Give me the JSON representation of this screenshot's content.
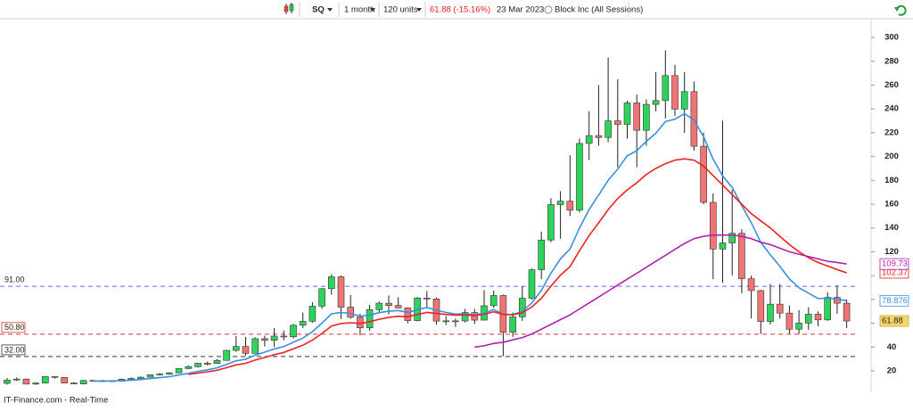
{
  "toolbar": {
    "symbol": "SQ",
    "interval": "1 month",
    "units": "120 units",
    "quote": "61.88 (-15.16%)",
    "date": "23 Mar 2023",
    "name": "Block Inc (All Sessions)"
  },
  "footer": "IT-Finance.com - Real-Time",
  "chart_data": {
    "type": "candlestick",
    "ylim": [
      2,
      315
    ],
    "yticks": [
      20,
      40,
      60,
      80,
      100,
      120,
      140,
      160,
      180,
      200,
      220,
      240,
      260,
      280,
      300
    ],
    "ohlc": {
      "up_color": "#2ed35c",
      "down_color": "#f07474",
      "open": [
        9.5,
        12.3,
        13.1,
        8.9,
        9.7,
        15.3,
        14.5,
        9.8,
        9,
        11.9,
        11.4,
        11.7,
        11.4,
        13,
        13.6,
        14.7,
        16.7,
        17.3,
        18.3,
        21.9,
        23.5,
        26.4,
        26.2,
        28.8,
        37.2,
        40.5,
        34.7,
        47,
        45.7,
        49.2,
        48.6,
        58.3,
        61.6,
        74.3,
        89,
        99,
        73.5,
        65,
        56.1,
        71.4,
        76.8,
        74.9,
        72.9,
        62.2,
        81.1,
        80.4,
        61.8,
        62,
        61.9,
        69,
        62.6,
        74.7,
        83.3,
        52.4,
        65.3,
        81,
        104.9,
        129.9,
        159.6,
        162.5,
        154.9,
        211,
        217.6,
        216,
        230,
        227,
        245,
        222,
        243.8,
        247,
        268,
        239.8,
        254.5,
        208.6,
        161.5,
        122.3,
        127.5,
        135.5,
        97.4,
        87.4,
        61.5,
        76,
        68.5,
        55,
        60.1,
        67.6,
        62.8,
        81.7,
        76.8
      ],
      "high": [
        14,
        14.5,
        13.5,
        10.5,
        15.5,
        15.6,
        14.6,
        10.5,
        12.3,
        12.5,
        12.5,
        12.2,
        13.5,
        14.5,
        15.2,
        17,
        18.2,
        18.9,
        22.1,
        24.6,
        26.5,
        27.8,
        29.9,
        37.5,
        49.2,
        48.4,
        48.2,
        49.5,
        56,
        53.9,
        59.4,
        69,
        77.7,
        89.5,
        101.2,
        100,
        83.7,
        68,
        75.4,
        78.3,
        83.3,
        81.8,
        73,
        82,
        87.1,
        81.7,
        66,
        63.9,
        72,
        72,
        87.6,
        87.3,
        84,
        69,
        91,
        106,
        137,
        165,
        171,
        201,
        215,
        238,
        260,
        283.2,
        265,
        247,
        252,
        248,
        271,
        289.2,
        277,
        271,
        263,
        220,
        169,
        230,
        172,
        139,
        100,
        88,
        93,
        93,
        75,
        71,
        73.5,
        70,
        86,
        92,
        80
      ],
      "low": [
        8.5,
        11.5,
        8.5,
        8.1,
        9.6,
        13.5,
        9.6,
        8.8,
        8.9,
        10.9,
        11,
        10.8,
        11.2,
        12.9,
        13.3,
        14.5,
        16,
        16.7,
        18,
        21.5,
        22.9,
        24.6,
        26,
        28.5,
        36,
        32.8,
        34.6,
        40.5,
        40,
        45.6,
        47.1,
        56,
        60.6,
        72,
        84,
        63.6,
        63.8,
        49.8,
        53.6,
        68.2,
        67.5,
        72.5,
        59.9,
        61.6,
        73,
        58.7,
        58.6,
        56.9,
        60.6,
        59.3,
        62.3,
        73,
        32.3,
        48.5,
        62,
        80,
        97,
        128,
        131,
        150,
        153,
        197,
        209,
        212,
        191,
        215,
        191,
        209,
        238,
        232,
        234,
        220,
        205,
        160,
        97,
        94,
        100,
        85,
        64,
        51,
        59,
        64,
        51.3,
        51,
        54.4,
        57.5,
        62,
        68,
        56
      ],
      "close": [
        12.3,
        13.1,
        8.9,
        9.7,
        15.3,
        14.5,
        9.8,
        9,
        11.9,
        11.4,
        11.7,
        11.4,
        13,
        13.6,
        14.7,
        16.7,
        17.3,
        18.3,
        21.9,
        23.5,
        26.4,
        26.2,
        28.8,
        37.2,
        40.5,
        34.7,
        47,
        45.7,
        49.2,
        48.6,
        58.3,
        61.6,
        74.3,
        89,
        99,
        73.5,
        65,
        56.1,
        71.4,
        76.8,
        74.9,
        72.9,
        62.2,
        81.1,
        80.4,
        61.8,
        62,
        61.9,
        69,
        62.6,
        74.7,
        83.3,
        52.4,
        65.3,
        81,
        104.9,
        129.9,
        159.6,
        162.5,
        154.9,
        211,
        217.6,
        216,
        230,
        227,
        245,
        222,
        243.8,
        247,
        268,
        239.8,
        254.5,
        208.6,
        161.5,
        122.3,
        127.5,
        135.5,
        97.4,
        87.4,
        61.5,
        76,
        68.5,
        55,
        60.1,
        67.6,
        62.8,
        81.7,
        76.8,
        61.88
      ]
    },
    "indicators": [
      {
        "color": "#3a8fdf",
        "values": [
          null,
          null,
          null,
          null,
          null,
          null,
          null,
          null,
          null,
          11.4,
          11.5,
          11.5,
          11.8,
          12.2,
          12.7,
          13.5,
          14.3,
          15.1,
          16.5,
          17.9,
          19.6,
          20.9,
          22.5,
          25.4,
          28.4,
          29.7,
          33.2,
          35.7,
          38.4,
          40.4,
          44,
          47.5,
          52.9,
          60.1,
          67.9,
          69,
          68.2,
          65.8,
          66.9,
          68.9,
          70.1,
          70.7,
          69,
          71.4,
          73.2,
          70.9,
          69.1,
          67.7,
          68,
          66.9,
          68.5,
          71.5,
          67.7,
          67.2,
          70,
          77,
          87.6,
          102,
          114.1,
          122.3,
          140,
          155.5,
          167.6,
          180.1,
          189.5,
          200.6,
          204.9,
          212.7,
          219.6,
          229.3,
          231.4,
          236,
          230.5,
          216.7,
          197.8,
          183.7,
          174.1,
          158.8,
          144.5,
          127.9,
          117.5,
          107.7,
          97.2,
          89.8,
          85.3,
          80.8,
          81,
          80.2,
          78.876
        ]
      },
      {
        "color": "#ee2020",
        "values": [
          null,
          null,
          null,
          null,
          null,
          null,
          null,
          null,
          null,
          null,
          null,
          null,
          null,
          null,
          null,
          null,
          null,
          null,
          null,
          17,
          18.2,
          19.2,
          20.5,
          22.7,
          25,
          26.3,
          29,
          31.2,
          33.5,
          35.5,
          38.5,
          41.5,
          45.8,
          51.4,
          57.6,
          59.7,
          60.4,
          59.8,
          61.3,
          63.3,
          64.8,
          65.9,
          65.4,
          67.4,
          69.1,
          68.2,
          67.4,
          66.7,
          67,
          66.4,
          67.5,
          69.6,
          67.4,
          67.1,
          68.9,
          73.6,
          80.9,
          91.1,
          100.4,
          107.5,
          121,
          133.6,
          144.3,
          155.4,
          164.7,
          172,
          178,
          185,
          190,
          194,
          197,
          198,
          197,
          192,
          184,
          176,
          168,
          160,
          152,
          146,
          140,
          133,
          126,
          120,
          115,
          111,
          108,
          105,
          102.37
        ]
      },
      {
        "color": "#b020b0",
        "values": [
          null,
          null,
          null,
          null,
          null,
          null,
          null,
          null,
          null,
          null,
          null,
          null,
          null,
          null,
          null,
          null,
          null,
          null,
          null,
          null,
          null,
          null,
          null,
          null,
          null,
          null,
          null,
          null,
          null,
          null,
          null,
          null,
          null,
          null,
          null,
          null,
          null,
          null,
          null,
          null,
          null,
          null,
          null,
          null,
          null,
          null,
          null,
          null,
          null,
          40,
          41,
          43,
          44,
          46,
          48,
          51,
          55,
          59,
          63,
          67,
          72,
          77,
          82,
          87,
          92,
          97,
          102,
          107,
          112,
          117,
          122,
          127,
          131,
          133,
          134,
          134,
          134,
          133,
          131,
          128,
          126,
          123,
          120,
          118,
          116,
          114,
          112,
          111,
          109.73
        ]
      }
    ],
    "hlines": [
      {
        "value": 91,
        "label": "91.00",
        "color": "#6b6bff"
      },
      {
        "value": 50.8,
        "label": "50.80",
        "color": "#e53030"
      },
      {
        "value": 32,
        "label": "32.00",
        "color": "#333333"
      }
    ]
  }
}
